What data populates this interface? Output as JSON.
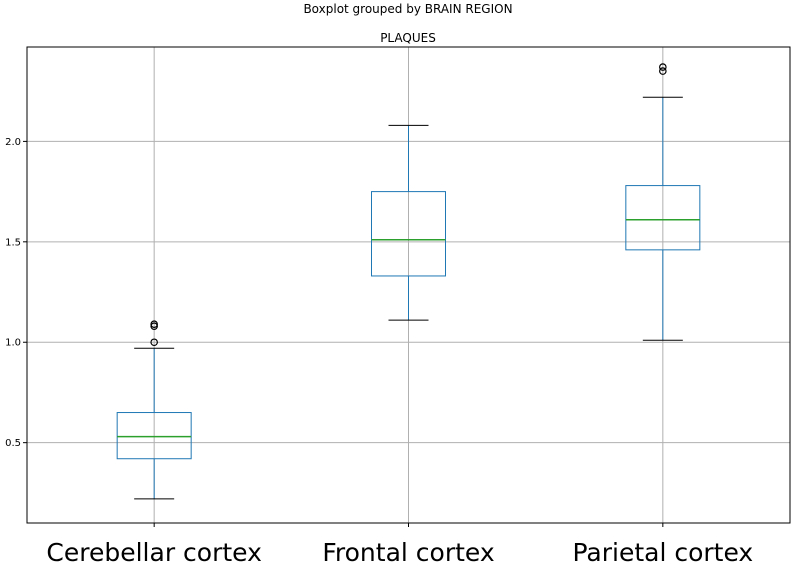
{
  "chart_data": {
    "type": "boxplot",
    "suptitle": "Boxplot grouped by BRAIN REGION",
    "title": "PLAQUES",
    "xlabel": "",
    "ylabel": "",
    "ylim": [
      0.1,
      2.47
    ],
    "yticks": [
      0.5,
      1.0,
      1.5,
      2.0
    ],
    "ytick_labels": [
      "0.5",
      "1.0",
      "1.5",
      "2.0"
    ],
    "grid": true,
    "colors": {
      "box": "#1f77b4",
      "median": "#2ca02c",
      "grid": "#b0b0b0",
      "axes": "#000000"
    },
    "categories": [
      "Cerebellar cortex",
      "Frontal cortex",
      "Parietal cortex"
    ],
    "boxes": [
      {
        "name": "Cerebellar cortex",
        "whislo": 0.22,
        "q1": 0.42,
        "med": 0.53,
        "q3": 0.65,
        "whishi": 0.97,
        "fliers": [
          1.0,
          1.08,
          1.09
        ]
      },
      {
        "name": "Frontal cortex",
        "whislo": 1.11,
        "q1": 1.33,
        "med": 1.51,
        "q3": 1.75,
        "whishi": 2.08,
        "fliers": []
      },
      {
        "name": "Parietal cortex",
        "whislo": 1.01,
        "q1": 1.46,
        "med": 1.61,
        "q3": 1.78,
        "whishi": 2.22,
        "fliers": [
          2.35,
          2.37
        ]
      }
    ]
  }
}
